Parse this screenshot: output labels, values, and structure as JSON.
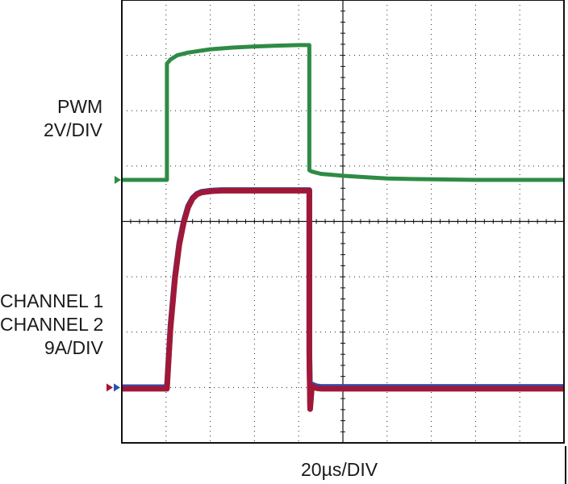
{
  "labels": {
    "pwm": "PWM",
    "pwm_scale": "2V/DIV",
    "ch1": "CHANNEL 1",
    "ch2": "CHANNEL 2",
    "current_scale": "9A/DIV",
    "time_scale": "20µs/DIV"
  },
  "colors": {
    "pwm": "#2e8b45",
    "channel1": "#2b4fb5",
    "channel2": "#a01838",
    "grid": "#222222",
    "frame": "#111111"
  },
  "chart_data": {
    "type": "line",
    "title": "",
    "grid": true,
    "divisions": {
      "x": 10,
      "y": 8
    },
    "x_scale": "20µs/DIV",
    "xlim": [
      0,
      200
    ],
    "series": [
      {
        "name": "PWM",
        "scale": "2V/DIV",
        "x": [
          0,
          20.4,
          20.4,
          22,
          25,
          30,
          40,
          50,
          60,
          70,
          80,
          84.8,
          84.8,
          86,
          90,
          100,
          110,
          120,
          140,
          160,
          180,
          200
        ],
        "y": [
          0,
          0,
          4.2,
          4.35,
          4.5,
          4.6,
          4.72,
          4.78,
          4.82,
          4.85,
          4.87,
          4.87,
          0.35,
          0.3,
          0.22,
          0.15,
          0.1,
          0.05,
          0.02,
          0,
          0,
          0
        ]
      },
      {
        "name": "CHANNEL 1",
        "scale": "9A/DIV",
        "x": [
          0,
          20.4,
          20.4,
          22,
          24,
          26,
          28,
          30,
          32,
          34,
          36,
          40,
          45,
          50,
          60,
          70,
          80,
          84.8,
          84.8,
          85.2,
          86,
          88,
          90,
          100,
          120,
          140,
          160,
          180,
          200
        ],
        "y": [
          0.05,
          0.05,
          0.05,
          10,
          18,
          23.5,
          27,
          29.5,
          30.8,
          31.5,
          31.8,
          32,
          32.1,
          32.1,
          32.1,
          32.1,
          32.1,
          32.1,
          6,
          -3,
          0.5,
          0.2,
          0.1,
          0.1,
          0.1,
          0.1,
          0.1,
          0.1,
          0.1
        ]
      },
      {
        "name": "CHANNEL 2",
        "scale": "9A/DIV",
        "x": [
          0,
          20.4,
          20.4,
          22,
          24,
          26,
          28,
          30,
          32,
          34,
          36,
          40,
          45,
          50,
          60,
          70,
          80,
          84.8,
          84.8,
          85.2,
          86,
          88,
          90,
          100,
          120,
          140,
          160,
          180,
          200
        ],
        "y": [
          -0.2,
          -0.2,
          -0.2,
          9.6,
          17.6,
          23.2,
          26.8,
          29.3,
          30.7,
          31.4,
          31.7,
          31.9,
          32,
          32,
          32,
          32,
          32,
          32,
          5,
          -3.5,
          0.2,
          -0.1,
          -0.2,
          -0.2,
          -0.2,
          -0.2,
          -0.2,
          -0.2,
          -0.2
        ]
      }
    ]
  }
}
